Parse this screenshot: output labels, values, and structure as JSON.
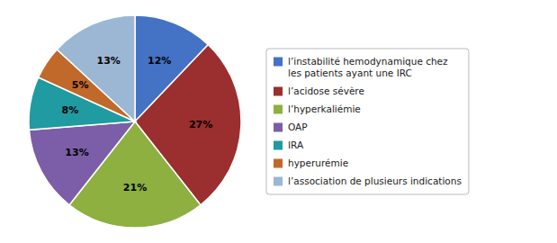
{
  "chart_data": {
    "type": "pie",
    "categories": [
      "l’instabilité hemodynamique chez\nles patients ayant une IRC",
      "l’acidose sévère",
      "l’hyperkaliémie",
      "OAP",
      "IRA",
      "hyperurémie",
      "l’association de plusieurs indications"
    ],
    "values": [
      12,
      27,
      21,
      13,
      8,
      5,
      13
    ],
    "value_labels": [
      "12%",
      "27%",
      "21%",
      "13%",
      "8%",
      "5%",
      "13%"
    ],
    "colors": [
      "#4472C4",
      "#9B2E2E",
      "#8DB040",
      "#7B5EA7",
      "#1F9BA1",
      "#C0692A",
      "#9BB7D4"
    ],
    "data_labels": true,
    "legend": "right"
  }
}
